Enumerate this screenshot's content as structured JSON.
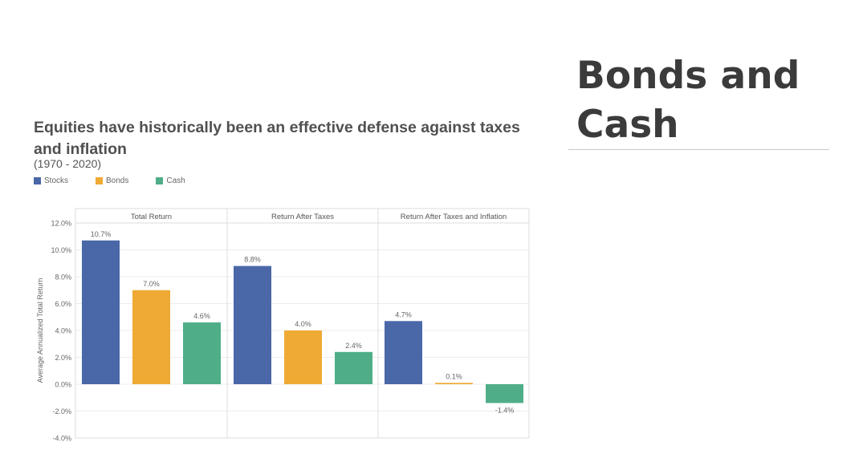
{
  "slide": {
    "title": "Bonds and Cash"
  },
  "colors": {
    "stocks": "#4a67a8",
    "bonds": "#efaa35",
    "cash": "#4fae88",
    "grid": "#ececec",
    "panel_border": "#dcdcdc"
  },
  "chart_data": {
    "type": "bar",
    "title": "Equities have historically been an effective defense against taxes and inflation",
    "subtitle": "(1970 - 2020)",
    "ylabel": "Average Annualized Total Return",
    "xlabel": "",
    "ylim": [
      -4,
      12
    ],
    "yticks": [
      {
        "value": 12,
        "label": "12.0%"
      },
      {
        "value": 10,
        "label": "10.0%"
      },
      {
        "value": 8,
        "label": "8.0%"
      },
      {
        "value": 6,
        "label": "6.0%"
      },
      {
        "value": 4,
        "label": "4.0%"
      },
      {
        "value": 2,
        "label": "2.0%"
      },
      {
        "value": 0,
        "label": "0.0%"
      },
      {
        "value": -2,
        "label": "-2.0%"
      },
      {
        "value": -4,
        "label": "-4.0%"
      }
    ],
    "grid": true,
    "legend_position": "top-left",
    "legend": [
      {
        "name": "Stocks",
        "color_key": "stocks"
      },
      {
        "name": "Bonds",
        "color_key": "bonds"
      },
      {
        "name": "Cash",
        "color_key": "cash"
      }
    ],
    "panels": [
      {
        "name": "Total Return",
        "values": [
          10.7,
          7.0,
          4.6
        ],
        "labels": [
          "10.7%",
          "7.0%",
          "4.6%"
        ]
      },
      {
        "name": "Return After Taxes",
        "values": [
          8.8,
          4.0,
          2.4
        ],
        "labels": [
          "8.8%",
          "4.0%",
          "2.4%"
        ]
      },
      {
        "name": "Return After Taxes and Inflation",
        "values": [
          4.7,
          0.1,
          -1.4
        ],
        "labels": [
          "4.7%",
          "0.1%",
          "-1.4%"
        ]
      }
    ]
  }
}
